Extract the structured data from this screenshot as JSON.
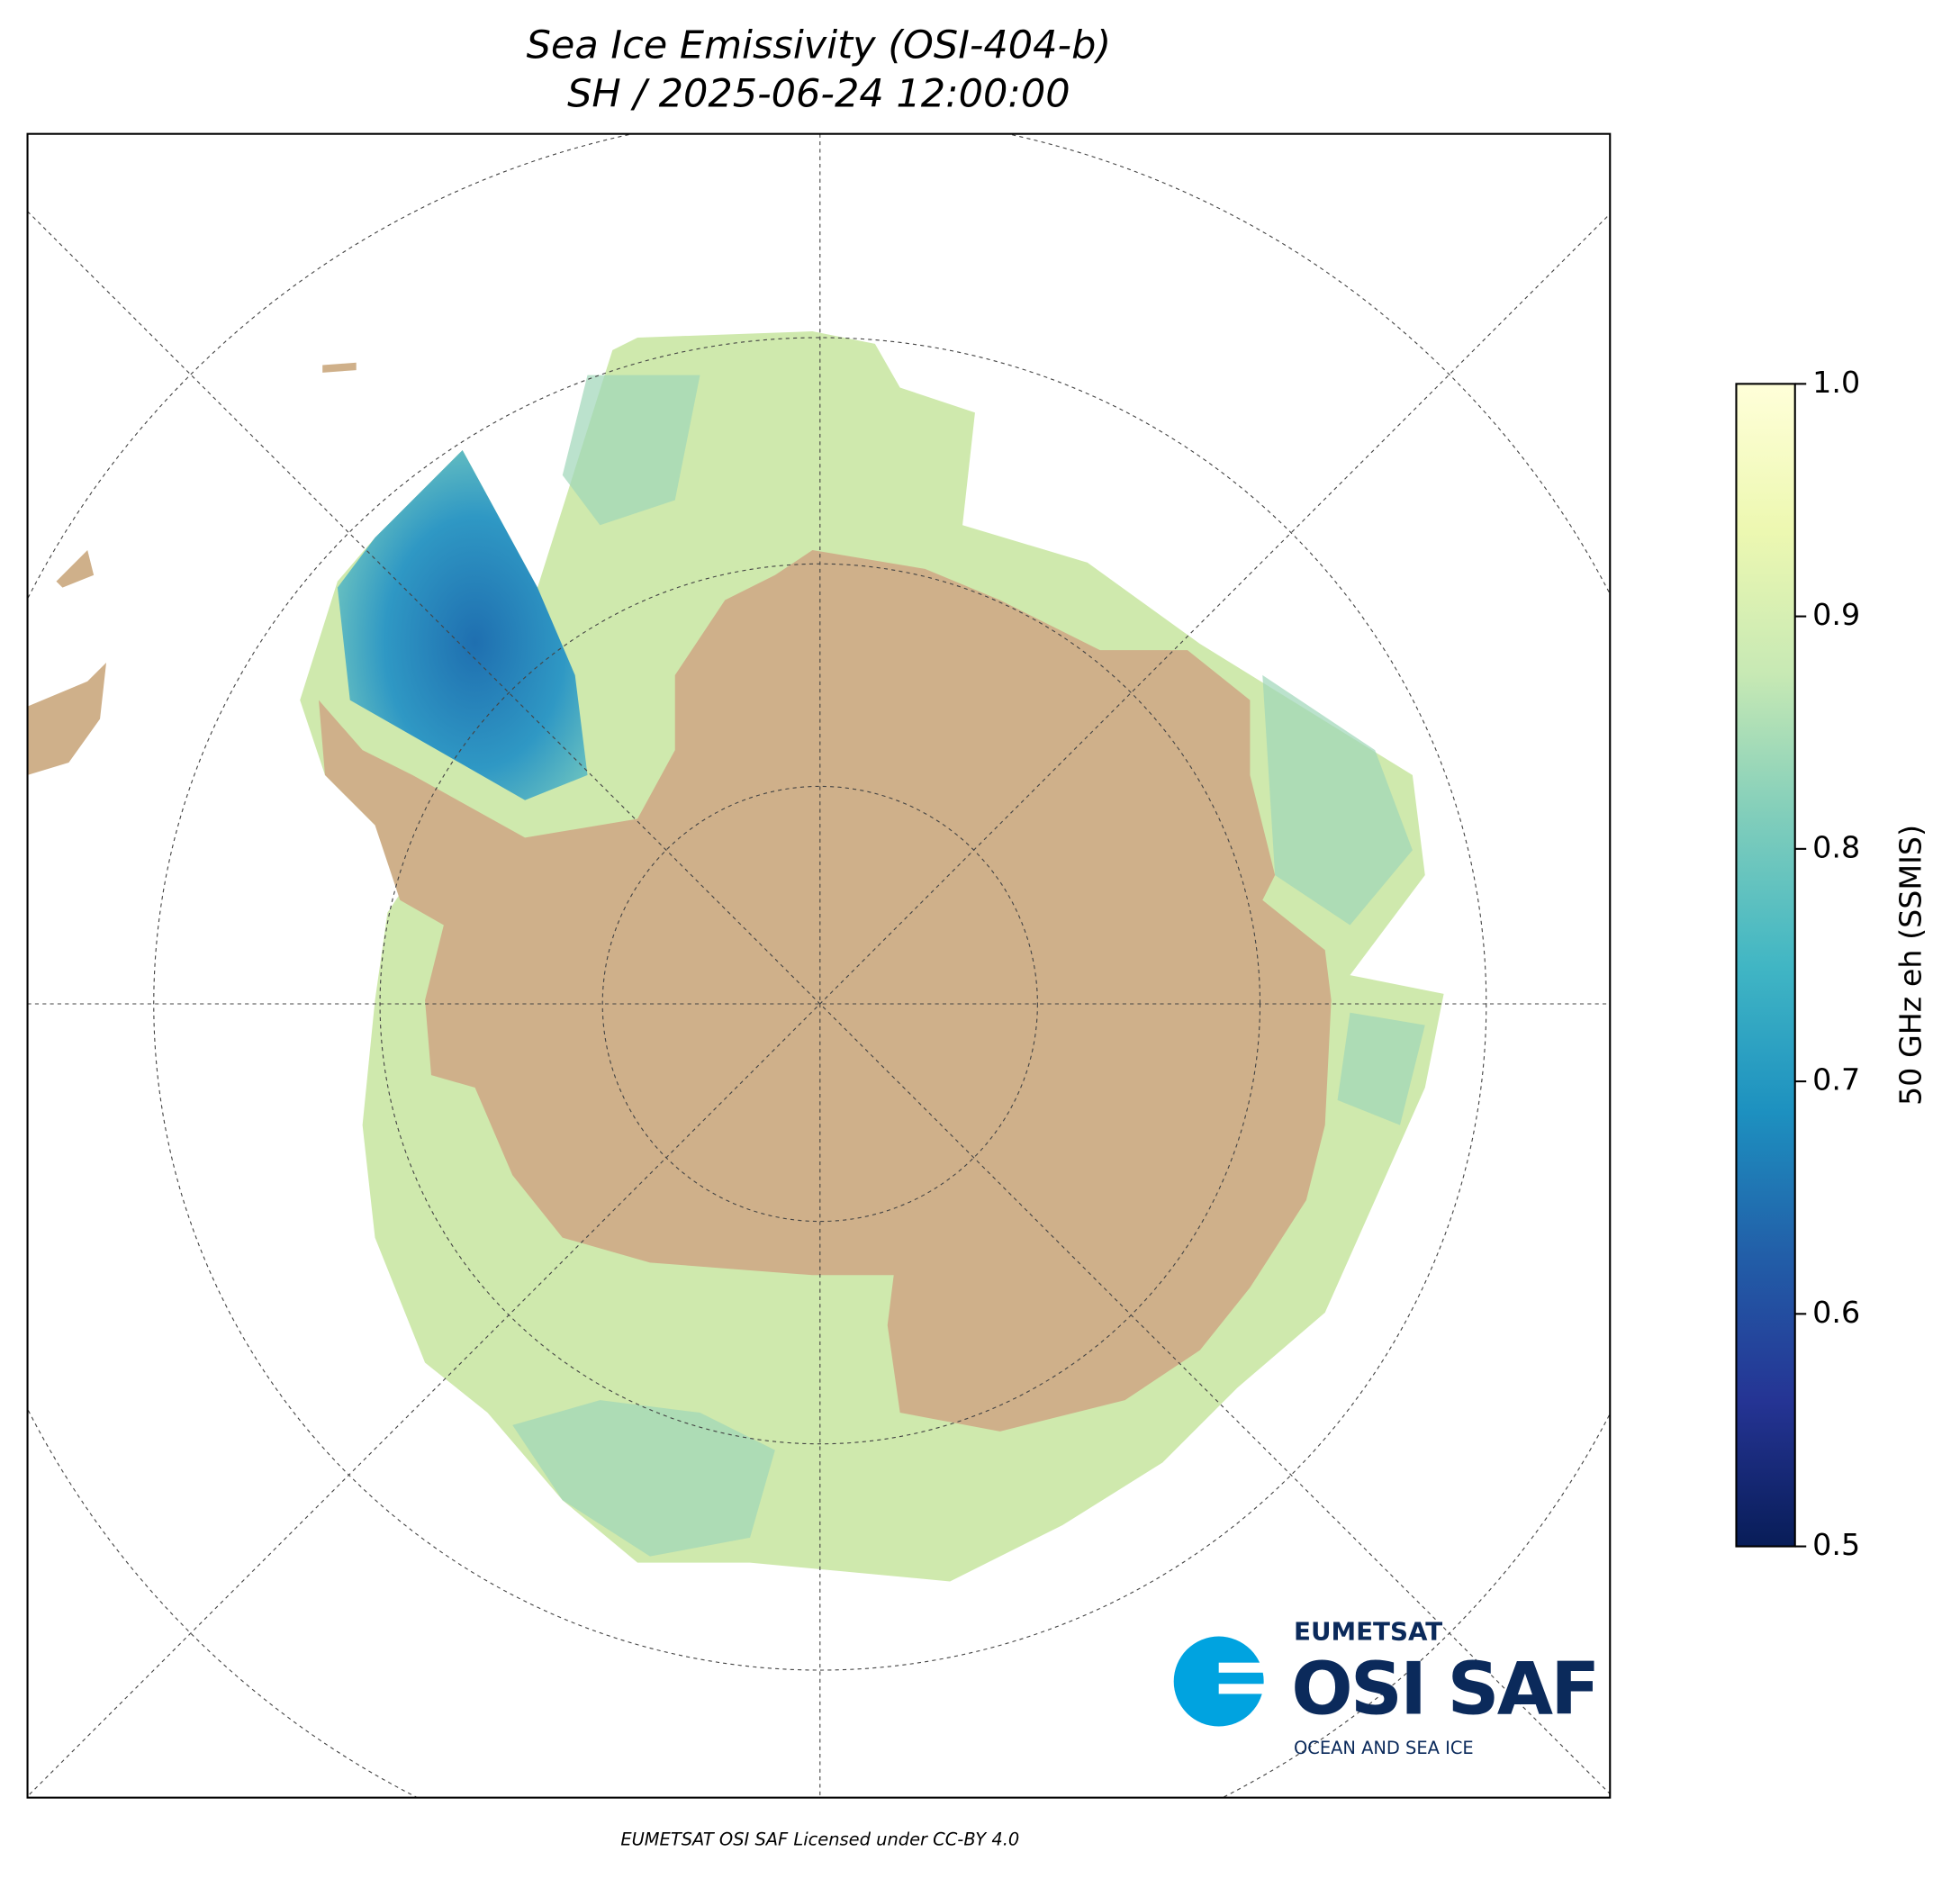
{
  "title": "Sea Ice Emissivity (OSI-404-b)",
  "subtitle": "SH / 2025-06-24 12:00:00",
  "colorbar": {
    "label": "50 GHz eh (SSMIS)",
    "lim": [
      0.5,
      1.0
    ],
    "ticks": [
      0.5,
      0.6,
      0.7,
      0.8,
      0.9,
      {
        "value": 1.0,
        "label": "1.0"
      }
    ],
    "colors": [
      "#081d58",
      "#253494",
      "#225ea8",
      "#1d91c0",
      "#41b6c4",
      "#7fcdbb",
      "#c7e9b4",
      "#edf8b1",
      "#ffffd9"
    ]
  },
  "logo": {
    "top": "EUMETSAT",
    "main": "OSI SAF",
    "sub": "OCEAN AND SEA ICE"
  },
  "credit": "EUMETSAT OSI SAF Licensed under CC-BY 4.0"
}
